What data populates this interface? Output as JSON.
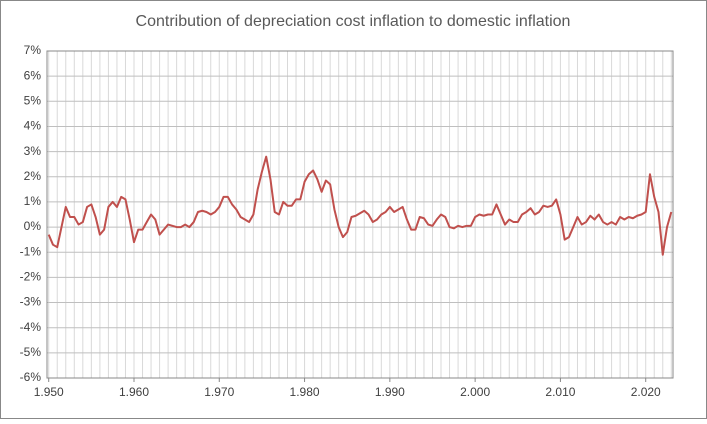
{
  "chart_data": {
    "type": "line",
    "title": "Contribution of depreciation cost inflation to domestic inflation",
    "color": "#c0504d",
    "grid": true,
    "x_minor_step": 1,
    "xlim": [
      1949.8,
      2023.2
    ],
    "ylim": [
      -6,
      7
    ],
    "xticks": [
      {
        "value": 1950,
        "label": "1.950"
      },
      {
        "value": 1960,
        "label": "1.960"
      },
      {
        "value": 1970,
        "label": "1.970"
      },
      {
        "value": 1980,
        "label": "1.980"
      },
      {
        "value": 1990,
        "label": "1.990"
      },
      {
        "value": 2000,
        "label": "2.000"
      },
      {
        "value": 2010,
        "label": "2.010"
      },
      {
        "value": 2020,
        "label": "2.020"
      }
    ],
    "yticks": [
      {
        "value": 7,
        "label": "7%"
      },
      {
        "value": 6,
        "label": "6%"
      },
      {
        "value": 5,
        "label": "5%"
      },
      {
        "value": 4,
        "label": "4%"
      },
      {
        "value": 3,
        "label": "3%"
      },
      {
        "value": 2,
        "label": "2%"
      },
      {
        "value": 1,
        "label": "1%"
      },
      {
        "value": 0,
        "label": "0%"
      },
      {
        "value": -1,
        "label": "-1%"
      },
      {
        "value": -2,
        "label": "-2%"
      },
      {
        "value": -3,
        "label": "-3%"
      },
      {
        "value": -4,
        "label": "-4%"
      },
      {
        "value": -5,
        "label": "-5%"
      },
      {
        "value": -6,
        "label": "-6%"
      }
    ],
    "x": [
      1950,
      1950.5,
      1951,
      1951.5,
      1952,
      1952.5,
      1953,
      1953.5,
      1954,
      1954.5,
      1955,
      1955.5,
      1956,
      1956.5,
      1957,
      1957.5,
      1958,
      1958.5,
      1959,
      1959.5,
      1960,
      1960.5,
      1961,
      1961.5,
      1962,
      1962.5,
      1963,
      1963.5,
      1964,
      1964.5,
      1965,
      1965.5,
      1966,
      1966.5,
      1967,
      1967.5,
      1968,
      1968.5,
      1969,
      1969.5,
      1970,
      1970.5,
      1971,
      1971.5,
      1972,
      1972.5,
      1973,
      1973.5,
      1974,
      1974.5,
      1975,
      1975.5,
      1976,
      1976.5,
      1977,
      1977.5,
      1978,
      1978.5,
      1979,
      1979.5,
      1980,
      1980.5,
      1981,
      1981.5,
      1982,
      1982.5,
      1983,
      1983.5,
      1984,
      1984.5,
      1985,
      1985.5,
      1986,
      1986.5,
      1987,
      1987.5,
      1988,
      1988.5,
      1989,
      1989.5,
      1990,
      1990.5,
      1991,
      1991.5,
      1992,
      1992.5,
      1993,
      1993.5,
      1994,
      1994.5,
      1995,
      1995.5,
      1996,
      1996.5,
      1997,
      1997.5,
      1998,
      1998.5,
      1999,
      1999.5,
      2000,
      2000.5,
      2001,
      2001.5,
      2002,
      2002.5,
      2003,
      2003.5,
      2004,
      2004.5,
      2005,
      2005.5,
      2006,
      2006.5,
      2007,
      2007.5,
      2008,
      2008.5,
      2009,
      2009.5,
      2010,
      2010.5,
      2011,
      2011.5,
      2012,
      2012.5,
      2013,
      2013.5,
      2014,
      2014.5,
      2015,
      2015.5,
      2016,
      2016.5,
      2017,
      2017.5,
      2018,
      2018.5,
      2019,
      2019.5,
      2020,
      2020.5,
      2021,
      2021.5,
      2022,
      2022.5,
      2023
    ],
    "values": [
      -0.3,
      -0.7,
      -0.8,
      0.0,
      0.8,
      0.4,
      0.4,
      0.1,
      0.2,
      0.8,
      0.9,
      0.4,
      -0.3,
      -0.1,
      0.8,
      1.0,
      0.8,
      1.2,
      1.1,
      0.3,
      -0.6,
      -0.1,
      -0.1,
      0.2,
      0.5,
      0.3,
      -0.3,
      -0.1,
      0.1,
      0.05,
      0.0,
      0.0,
      0.1,
      0.0,
      0.2,
      0.6,
      0.65,
      0.6,
      0.5,
      0.6,
      0.8,
      1.2,
      1.2,
      0.9,
      0.7,
      0.4,
      0.3,
      0.2,
      0.5,
      1.5,
      2.2,
      2.8,
      1.9,
      0.6,
      0.5,
      1.0,
      0.85,
      0.85,
      1.1,
      1.1,
      1.8,
      2.1,
      2.25,
      1.9,
      1.4,
      1.85,
      1.7,
      0.7,
      0.0,
      -0.4,
      -0.2,
      0.4,
      0.45,
      0.55,
      0.65,
      0.5,
      0.2,
      0.3,
      0.5,
      0.6,
      0.8,
      0.6,
      0.7,
      0.8,
      0.3,
      -0.1,
      -0.1,
      0.4,
      0.35,
      0.1,
      0.05,
      0.3,
      0.5,
      0.4,
      0.0,
      -0.05,
      0.05,
      0.0,
      0.05,
      0.05,
      0.4,
      0.5,
      0.45,
      0.5,
      0.5,
      0.9,
      0.5,
      0.1,
      0.3,
      0.2,
      0.2,
      0.5,
      0.6,
      0.75,
      0.5,
      0.6,
      0.85,
      0.8,
      0.85,
      1.1,
      0.5,
      -0.5,
      -0.4,
      0.0,
      0.4,
      0.1,
      0.2,
      0.45,
      0.3,
      0.5,
      0.2,
      0.1,
      0.2,
      0.1,
      0.4,
      0.3,
      0.4,
      0.35,
      0.45,
      0.5,
      0.6,
      2.1,
      1.2,
      0.6,
      -1.1,
      0.0,
      0.6
    ]
  }
}
